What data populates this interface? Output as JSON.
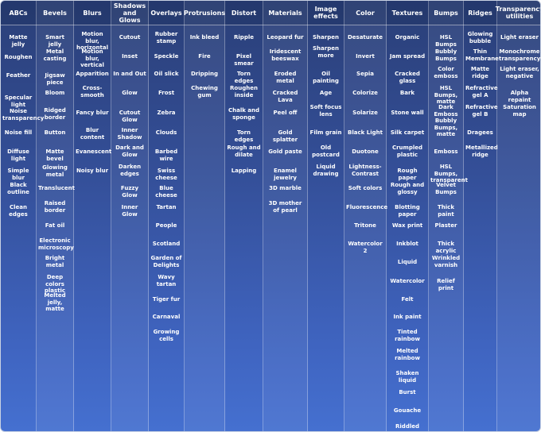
{
  "columns": [
    {
      "title": "ABCs",
      "items": [
        {
          "label": "Matte jelly",
          "row": 42
        },
        {
          "label": "Roughen",
          "row": 67
        },
        {
          "label": "Feather",
          "row": 90
        },
        {
          "label": "Specular light Noise transparency",
          "row": 118
        },
        {
          "label": "Noise fill",
          "row": 162
        },
        {
          "label": "Diffuse light",
          "row": 186
        },
        {
          "label": "Simple blur",
          "row": 210
        },
        {
          "label": "Black outline",
          "row": 228
        },
        {
          "label": "Clean edges",
          "row": 256
        }
      ]
    },
    {
      "title": "Bevels",
      "items": [
        {
          "label": "Smart jelly",
          "row": 42
        },
        {
          "label": "Metal casting",
          "row": 60
        },
        {
          "label": "Jigsaw piece",
          "row": 90
        },
        {
          "label": "Bloom",
          "row": 112
        },
        {
          "label": "Ridged border",
          "row": 134
        },
        {
          "label": "Button",
          "row": 162
        },
        {
          "label": "Matte bevel",
          "row": 186
        },
        {
          "label": "Glowing metal",
          "row": 206
        },
        {
          "label": "Translucent",
          "row": 232
        },
        {
          "label": "Raised border",
          "row": 251
        },
        {
          "label": "Fat oil",
          "row": 279
        },
        {
          "label": "Electronic microscopy",
          "row": 298
        },
        {
          "label": "Bright metal",
          "row": 320
        },
        {
          "label": "Deep colors plastic",
          "row": 344
        },
        {
          "label": "Melted jelly, matte",
          "row": 367
        }
      ]
    },
    {
      "title": "Blurs",
      "items": [
        {
          "label": "Motion blur, horizontal",
          "row": 38
        },
        {
          "label": "Motion blur, vertical",
          "row": 60
        },
        {
          "label": "Apparition",
          "row": 88
        },
        {
          "label": "Cross-smooth",
          "row": 106
        },
        {
          "label": "Fancy blur",
          "row": 137
        },
        {
          "label": "Blur content",
          "row": 159
        },
        {
          "label": "Evanescent",
          "row": 186
        },
        {
          "label": "Noisy blur",
          "row": 210
        }
      ]
    },
    {
      "title": "Shadows and Glows",
      "items": [
        {
          "label": "Cutout",
          "row": 42
        },
        {
          "label": "Inset",
          "row": 66
        },
        {
          "label": "In and Out",
          "row": 88
        },
        {
          "label": "Glow",
          "row": 112
        },
        {
          "label": "Cutout Glow",
          "row": 137
        },
        {
          "label": "Inner Shadow",
          "row": 159
        },
        {
          "label": "Dark and Glow",
          "row": 181
        },
        {
          "label": "Darken edges",
          "row": 205
        },
        {
          "label": "Fuzzy Glow",
          "row": 232
        },
        {
          "label": "Inner Glow",
          "row": 256
        }
      ]
    },
    {
      "title": "Overlays",
      "items": [
        {
          "label": "Rubber stamp",
          "row": 38
        },
        {
          "label": "Speckle",
          "row": 66
        },
        {
          "label": "Oil slick",
          "row": 88
        },
        {
          "label": "Frost",
          "row": 112
        },
        {
          "label": "Zebra",
          "row": 137
        },
        {
          "label": "Clouds",
          "row": 162
        },
        {
          "label": "Barbed wire",
          "row": 186
        },
        {
          "label": "Swiss cheese",
          "row": 210
        },
        {
          "label": "Blue cheese",
          "row": 232
        },
        {
          "label": "Tartan",
          "row": 256
        },
        {
          "label": "People",
          "row": 279
        },
        {
          "label": "Scotland",
          "row": 302
        },
        {
          "label": "Garden of Delights",
          "row": 320
        },
        {
          "label": "Wavy tartan",
          "row": 344
        },
        {
          "label": "Tiger fur",
          "row": 372
        },
        {
          "label": "Carnaval",
          "row": 394
        },
        {
          "label": "Growing cells",
          "row": 413
        }
      ]
    },
    {
      "title": "Protrusions",
      "items": [
        {
          "label": "Ink bleed",
          "row": 42
        },
        {
          "label": "Fire",
          "row": 66
        },
        {
          "label": "Dripping",
          "row": 88
        },
        {
          "label": "Chewing gum",
          "row": 106
        }
      ]
    },
    {
      "title": "Distort",
      "items": [
        {
          "label": "Ripple",
          "row": 42
        },
        {
          "label": "Pixel smear",
          "row": 66
        },
        {
          "label": "Torn edges",
          "row": 88
        },
        {
          "label": "Roughen inside",
          "row": 106
        },
        {
          "label": "Chalk and sponge",
          "row": 134
        },
        {
          "label": "Torn edges",
          "row": 162
        },
        {
          "label": "Rough and dilate",
          "row": 181
        },
        {
          "label": "Lapping",
          "row": 210
        }
      ]
    },
    {
      "title": "Materials",
      "items": [
        {
          "label": "Leopard fur",
          "row": 42
        },
        {
          "label": "Iridescent beeswax",
          "row": 60
        },
        {
          "label": "Eroded metal",
          "row": 88
        },
        {
          "label": "Cracked Lava",
          "row": 112
        },
        {
          "label": "Peel off",
          "row": 137
        },
        {
          "label": "Gold splatter",
          "row": 162
        },
        {
          "label": "Gold paste",
          "row": 186
        },
        {
          "label": "Enamel jewelry",
          "row": 210
        },
        {
          "label": "3D marble",
          "row": 232
        },
        {
          "label": "3D mother of pearl",
          "row": 251
        }
      ]
    },
    {
      "title": "Image effects",
      "items": [
        {
          "label": "Sharpen",
          "row": 42
        },
        {
          "label": "Sharpen more",
          "row": 56
        },
        {
          "label": "Oil painting",
          "row": 88
        },
        {
          "label": "Age",
          "row": 112
        },
        {
          "label": "Soft focus lens",
          "row": 130
        },
        {
          "label": "Film grain",
          "row": 162
        },
        {
          "label": "Old postcard",
          "row": 181
        },
        {
          "label": "Liquid drawing",
          "row": 205
        }
      ]
    },
    {
      "title": "Color",
      "items": [
        {
          "label": "Desaturate",
          "row": 42
        },
        {
          "label": "Invert",
          "row": 66
        },
        {
          "label": "Sepia",
          "row": 88
        },
        {
          "label": "Colorize",
          "row": 112
        },
        {
          "label": "Solarize",
          "row": 137
        },
        {
          "label": "Black Light",
          "row": 162
        },
        {
          "label": "Duotone",
          "row": 186
        },
        {
          "label": "Lightness-Contrast",
          "row": 205
        },
        {
          "label": "Soft colors",
          "row": 232
        },
        {
          "label": "Fluorescence",
          "row": 256
        },
        {
          "label": "Tritone",
          "row": 279
        },
        {
          "label": "Watercolor 2",
          "row": 302
        }
      ]
    },
    {
      "title": "Textures",
      "items": [
        {
          "label": "Organic",
          "row": 42
        },
        {
          "label": "Jam spread",
          "row": 66
        },
        {
          "label": "Cracked glass",
          "row": 88
        },
        {
          "label": "Bark",
          "row": 112
        },
        {
          "label": "Stone wall",
          "row": 137
        },
        {
          "label": "Silk carpet",
          "row": 162
        },
        {
          "label": "Crumpled plastic",
          "row": 181
        },
        {
          "label": "Rough paper",
          "row": 210
        },
        {
          "label": "Rough and glossy",
          "row": 228
        },
        {
          "label": "Blotting paper",
          "row": 256
        },
        {
          "label": "Wax print",
          "row": 279
        },
        {
          "label": "Inkblot",
          "row": 302
        },
        {
          "label": "Liquid",
          "row": 325
        },
        {
          "label": "Watercolor",
          "row": 349
        },
        {
          "label": "Felt",
          "row": 372
        },
        {
          "label": "Ink paint",
          "row": 394
        },
        {
          "label": "Tinted rainbow",
          "row": 413
        },
        {
          "label": "Melted rainbow",
          "row": 437
        },
        {
          "label": "Shaken liquid",
          "row": 465
        },
        {
          "label": "Burst",
          "row": 489
        },
        {
          "label": "Gouache",
          "row": 512
        },
        {
          "label": "Riddled",
          "row": 532
        }
      ]
    },
    {
      "title": "Bumps",
      "items": [
        {
          "label": "HSL Bumps",
          "row": 42
        },
        {
          "label": "Bubbly Bumps",
          "row": 60
        },
        {
          "label": "Color emboss",
          "row": 82
        },
        {
          "label": "HSL Bumps, matte",
          "row": 106
        },
        {
          "label": "Dark Emboss Bubbly Bumps, matte",
          "row": 130
        },
        {
          "label": "Emboss",
          "row": 186
        },
        {
          "label": "HSL Bumps, transparent",
          "row": 205
        },
        {
          "label": "Velvet Bumps",
          "row": 228
        },
        {
          "label": "Thick paint",
          "row": 256
        },
        {
          "label": "Plaster",
          "row": 279
        },
        {
          "label": "Thick acrylic",
          "row": 302
        },
        {
          "label": "Wrinkled varnish",
          "row": 320
        },
        {
          "label": "Relief print",
          "row": 349
        }
      ]
    },
    {
      "title": "Ridges",
      "items": [
        {
          "label": "Glowing bubble",
          "row": 38
        },
        {
          "label": "Thin Membrane",
          "row": 60
        },
        {
          "label": "Matte ridge",
          "row": 82
        },
        {
          "label": "Refractive gel A",
          "row": 106
        },
        {
          "label": "Refractive gel B",
          "row": 130
        },
        {
          "label": "Dragees",
          "row": 162
        },
        {
          "label": "Metallized ridge",
          "row": 181
        }
      ]
    },
    {
      "title": "Transparency utilities",
      "items": [
        {
          "label": "Light eraser",
          "row": 42
        },
        {
          "label": "Monochrome transparency",
          "row": 60
        },
        {
          "label": "Light eraser, negative",
          "row": 82
        },
        {
          "label": "Alpha repaint",
          "row": 112
        },
        {
          "label": "Saturation map",
          "row": 130
        }
      ]
    }
  ]
}
